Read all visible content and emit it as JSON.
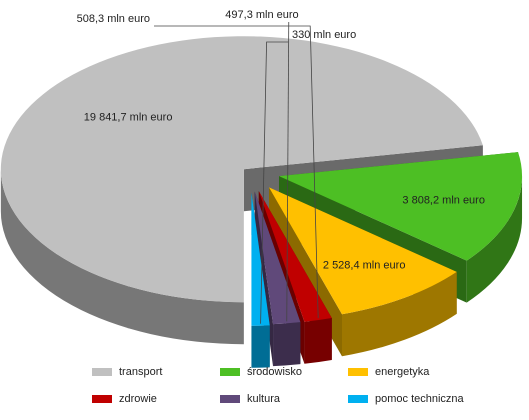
{
  "chart_data": {
    "type": "pie",
    "style": "3d-exploded",
    "series": [
      {
        "name": "transport",
        "value": 19841.7,
        "label": "19 841,7 mln euro",
        "color": "#c0c0c0"
      },
      {
        "name": "środowisko",
        "value": 3808.2,
        "label": "3 808,2 mln euro",
        "color": "#4dbf24"
      },
      {
        "name": "energetyka",
        "value": 2528.4,
        "label": "2 528,4 mln euro",
        "color": "#ffc000"
      },
      {
        "name": "zdrowie",
        "value": 508.3,
        "label": "508,3 mln euro",
        "color": "#c00000"
      },
      {
        "name": "kultura",
        "value": 497.3,
        "label": "497,3 mln euro",
        "color": "#60497a"
      },
      {
        "name": "pomoc techniczna",
        "value": 330,
        "label": "330 mln euro",
        "color": "#00b0f0"
      }
    ],
    "legend_position": "bottom"
  },
  "legend": {
    "items": [
      {
        "label": "transport",
        "color": "#c0c0c0"
      },
      {
        "label": "środowisko",
        "color": "#4dbf24"
      },
      {
        "label": "energetyka",
        "color": "#ffc000"
      },
      {
        "label": "zdrowie",
        "color": "#c00000"
      },
      {
        "label": "kultura",
        "color": "#60497a"
      },
      {
        "label": "pomoc techniczna",
        "color": "#00b0f0"
      }
    ]
  }
}
